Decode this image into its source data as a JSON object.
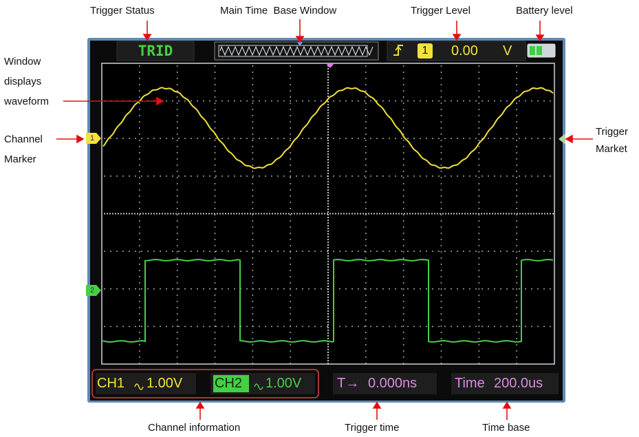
{
  "callouts": {
    "trigger_status": "Trigger Status",
    "main_time_base_window": "Main Time  Base Window",
    "trigger_level": "Trigger Level",
    "battery_level": "Battery level",
    "window_displays_waveform": [
      "Window",
      "displays",
      "waveform"
    ],
    "channel_marker": [
      "Channel",
      "Marker"
    ],
    "trigger_market": [
      "Trigger",
      "Market"
    ],
    "channel_information": "Channel information",
    "trigger_time": "Trigger time",
    "time_base": "Time base"
  },
  "screen": {
    "trigger_status": "TRID",
    "trigger_source": "1",
    "trigger_level": "0.00",
    "trigger_unit": "V",
    "ch1_marker": "1",
    "ch2_marker": "2",
    "ch1_label": "CH1",
    "ch1_scale": "1.00V",
    "ch2_label": "CH2",
    "ch2_scale": "1.00V",
    "trigger_time_label": "T→",
    "trigger_time_value": "0.000ns",
    "time_base_label": "Time",
    "time_base_value": "200.0us"
  },
  "colors": {
    "ch1": "#f2e23a",
    "ch2": "#45d044",
    "time_text": "#d98be0",
    "callout_arrow": "#e01010",
    "screen_frame": "#5f8ab4",
    "lcd_bg": "#0b0b0b"
  }
}
